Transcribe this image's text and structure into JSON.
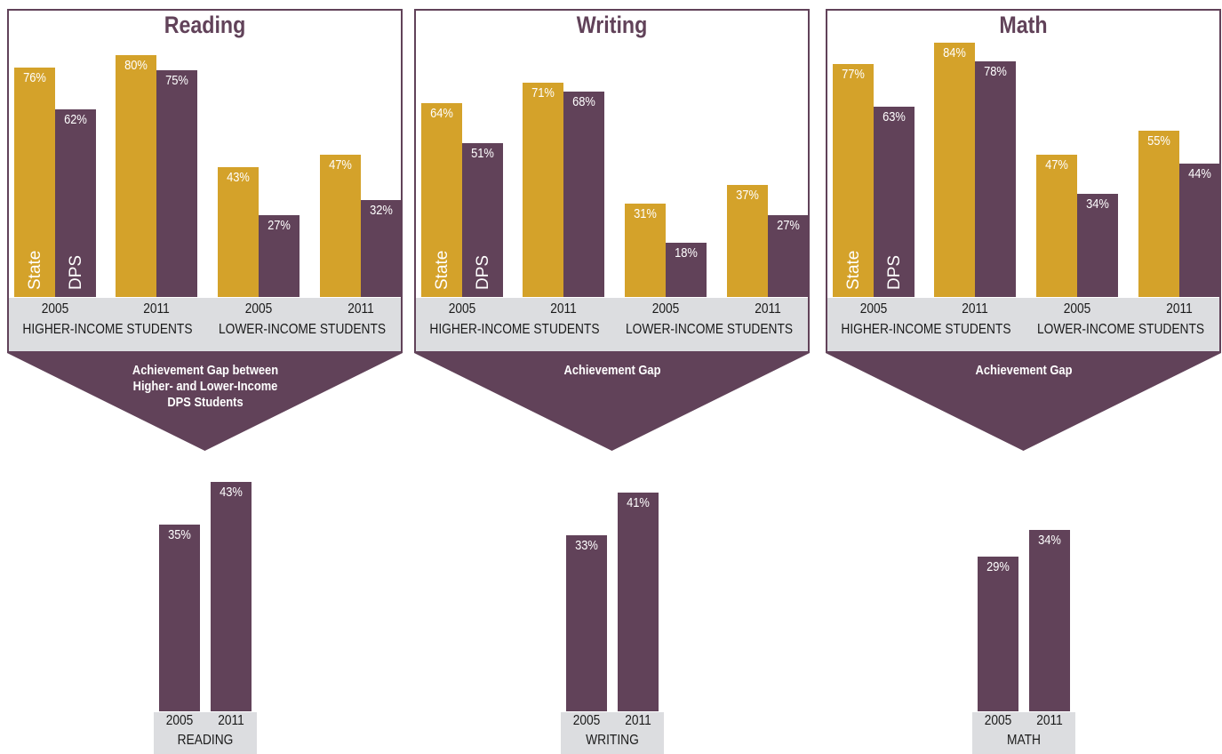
{
  "chart_data": [
    {
      "type": "bar",
      "title": "Reading",
      "groups": [
        "HIGHER-INCOME STUDENTS",
        "LOWER-INCOME STUDENTS"
      ],
      "categories": [
        "2005",
        "2011",
        "2005",
        "2011"
      ],
      "series": [
        {
          "name": "State",
          "values": [
            76,
            80,
            43,
            47
          ],
          "labels": [
            "76%",
            "80%",
            "43%",
            "47%"
          ],
          "color": "#d4a22a"
        },
        {
          "name": "DPS",
          "values": [
            62,
            75,
            27,
            32
          ],
          "labels": [
            "62%",
            "75%",
            "27%",
            "32%"
          ],
          "color": "#614259"
        }
      ],
      "ylim": [
        0,
        85
      ],
      "gap_title": "Achievement Gap between Higher- and Lower-Income DPS Students",
      "gap": {
        "category": "READING",
        "years": [
          "2005",
          "2011"
        ],
        "values": [
          35,
          43
        ],
        "labels": [
          "35%",
          "43%"
        ]
      }
    },
    {
      "type": "bar",
      "title": "Writing",
      "groups": [
        "HIGHER-INCOME STUDENTS",
        "LOWER-INCOME STUDENTS"
      ],
      "categories": [
        "2005",
        "2011",
        "2005",
        "2011"
      ],
      "series": [
        {
          "name": "State",
          "values": [
            64,
            71,
            31,
            37
          ],
          "labels": [
            "64%",
            "71%",
            "31%",
            "37%"
          ],
          "color": "#d4a22a"
        },
        {
          "name": "DPS",
          "values": [
            51,
            68,
            18,
            27
          ],
          "labels": [
            "51%",
            "68%",
            "18%",
            "27%"
          ],
          "color": "#614259"
        }
      ],
      "ylim": [
        0,
        85
      ],
      "gap_title": "Achievement Gap",
      "gap": {
        "category": "WRITING",
        "years": [
          "2005",
          "2011"
        ],
        "values": [
          33,
          41
        ],
        "labels": [
          "33%",
          "41%"
        ]
      }
    },
    {
      "type": "bar",
      "title": "Math",
      "groups": [
        "HIGHER-INCOME STUDENTS",
        "LOWER-INCOME STUDENTS"
      ],
      "categories": [
        "2005",
        "2011",
        "2005",
        "2011"
      ],
      "series": [
        {
          "name": "State",
          "values": [
            77,
            84,
            47,
            55
          ],
          "labels": [
            "77%",
            "84%",
            "47%",
            "55%"
          ],
          "color": "#d4a22a"
        },
        {
          "name": "DPS",
          "values": [
            63,
            78,
            34,
            44
          ],
          "labels": [
            "63%",
            "78%",
            "34%",
            "44%"
          ],
          "color": "#614259"
        }
      ],
      "ylim": [
        0,
        85
      ],
      "gap_title": "Achievement Gap",
      "gap": {
        "category": "MATH",
        "years": [
          "2005",
          "2011"
        ],
        "values": [
          29,
          34
        ],
        "labels": [
          "29%",
          "34%"
        ]
      }
    }
  ],
  "colors": {
    "state": "#d4a22a",
    "dps": "#614259",
    "band": "#dcdde0"
  }
}
